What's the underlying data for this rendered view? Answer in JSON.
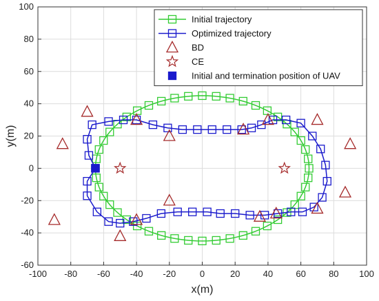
{
  "chart_data": {
    "type": "scatter",
    "xlabel": "x(m)",
    "ylabel": "y(m)",
    "xlim": [
      -100,
      100
    ],
    "ylim": [
      -60,
      100
    ],
    "xticks": [
      -100,
      -80,
      -60,
      -40,
      -20,
      0,
      20,
      40,
      60,
      80,
      100
    ],
    "yticks": [
      -60,
      -40,
      -20,
      0,
      20,
      40,
      60,
      80,
      100
    ],
    "grid": true,
    "legend_position": "top-right",
    "series": [
      {
        "name": "Initial trajectory",
        "kind": "line-square",
        "color": "#33cc33",
        "ellipse": {
          "center": [
            0,
            0
          ],
          "semi_x": 65,
          "semi_y": 45,
          "markers": 48
        }
      },
      {
        "name": "Optimized trajectory",
        "kind": "line-square",
        "color": "#1a1acc",
        "points": [
          [
            -65,
            0
          ],
          [
            -69,
            8
          ],
          [
            -70,
            18
          ],
          [
            -67,
            27
          ],
          [
            -57,
            29
          ],
          [
            -48,
            30
          ],
          [
            -40,
            30
          ],
          [
            -30,
            27
          ],
          [
            -21,
            25
          ],
          [
            -12,
            24
          ],
          [
            -3,
            24
          ],
          [
            6,
            24
          ],
          [
            15,
            24
          ],
          [
            24,
            24
          ],
          [
            30,
            25
          ],
          [
            36,
            27
          ],
          [
            43,
            30
          ],
          [
            51,
            30
          ],
          [
            60,
            28
          ],
          [
            67,
            20
          ],
          [
            72,
            12
          ],
          [
            75,
            2
          ],
          [
            76,
            -8
          ],
          [
            73,
            -18
          ],
          [
            68,
            -24
          ],
          [
            61,
            -27
          ],
          [
            54,
            -27
          ],
          [
            46,
            -28
          ],
          [
            38,
            -29
          ],
          [
            29,
            -29
          ],
          [
            20,
            -28
          ],
          [
            11,
            -28
          ],
          [
            3,
            -27
          ],
          [
            -6,
            -27
          ],
          [
            -15,
            -27
          ],
          [
            -25,
            -28
          ],
          [
            -34,
            -31
          ],
          [
            -42,
            -33
          ],
          [
            -50,
            -34
          ],
          [
            -57,
            -33
          ],
          [
            -64,
            -27
          ],
          [
            -70,
            -17
          ],
          [
            -70,
            -8
          ],
          [
            -65,
            0
          ]
        ]
      },
      {
        "name": "BD",
        "kind": "triangle",
        "color": "#a52a2a",
        "points": [
          [
            -85,
            15
          ],
          [
            -70,
            35
          ],
          [
            -40,
            30
          ],
          [
            -20,
            20
          ],
          [
            25,
            24
          ],
          [
            40,
            30
          ],
          [
            70,
            30
          ],
          [
            90,
            15
          ],
          [
            87,
            -15
          ],
          [
            70,
            -25
          ],
          [
            45,
            -28
          ],
          [
            35,
            -30
          ],
          [
            -20,
            -20
          ],
          [
            -40,
            -32
          ],
          [
            -50,
            -42
          ],
          [
            -90,
            -32
          ]
        ]
      },
      {
        "name": "CE",
        "kind": "star",
        "color": "#a52a2a",
        "points": [
          [
            -50,
            0
          ],
          [
            50,
            0
          ]
        ]
      },
      {
        "name": "Initial and termination position of UAV",
        "kind": "filled-square",
        "color": "#1a1acc",
        "points": [
          [
            -65,
            0
          ]
        ]
      }
    ]
  }
}
